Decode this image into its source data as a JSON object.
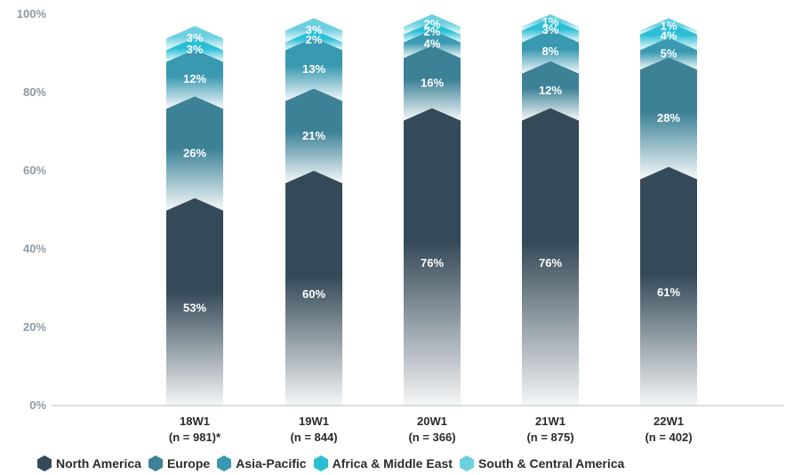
{
  "chart_data": {
    "type": "bar",
    "stacked": true,
    "categories": [
      "18W1",
      "19W1",
      "20W1",
      "21W1",
      "22W1"
    ],
    "sample_sizes": [
      "(n = 981)*",
      "(n = 844)",
      "(n = 366)",
      "(n = 875)",
      "(n = 402)"
    ],
    "series": [
      {
        "name": "North America",
        "color": "#354a58",
        "values": [
          53,
          60,
          76,
          76,
          61
        ],
        "labels": [
          "53%",
          "60%",
          "76%",
          "76%",
          "61%"
        ]
      },
      {
        "name": "Europe",
        "color": "#3c8196",
        "values": [
          26,
          21,
          16,
          12,
          28
        ],
        "labels": [
          "26%",
          "21%",
          "16%",
          "12%",
          "28%"
        ]
      },
      {
        "name": "Asia-Pacific",
        "color": "#3999b0",
        "values": [
          12,
          13,
          4,
          8,
          5
        ],
        "labels": [
          "12%",
          "13%",
          "4%",
          "8%",
          "5%"
        ]
      },
      {
        "name": "Africa & Middle East",
        "color": "#2bbfd6",
        "values": [
          3,
          2,
          2,
          3,
          4
        ],
        "labels": [
          "3%",
          "2%",
          "2%",
          "3%",
          "4%"
        ]
      },
      {
        "name": "South & Central America",
        "color": "#6cd0e0",
        "values": [
          3,
          3,
          2,
          1,
          1
        ],
        "labels": [
          "3%",
          "3%",
          "2%",
          "1%",
          "1%"
        ]
      }
    ],
    "y_ticks": [
      "0%",
      "20%",
      "40%",
      "60%",
      "80%",
      "100%"
    ],
    "ylim": [
      0,
      100
    ],
    "legend_position": "bottom-left",
    "grid": false
  }
}
